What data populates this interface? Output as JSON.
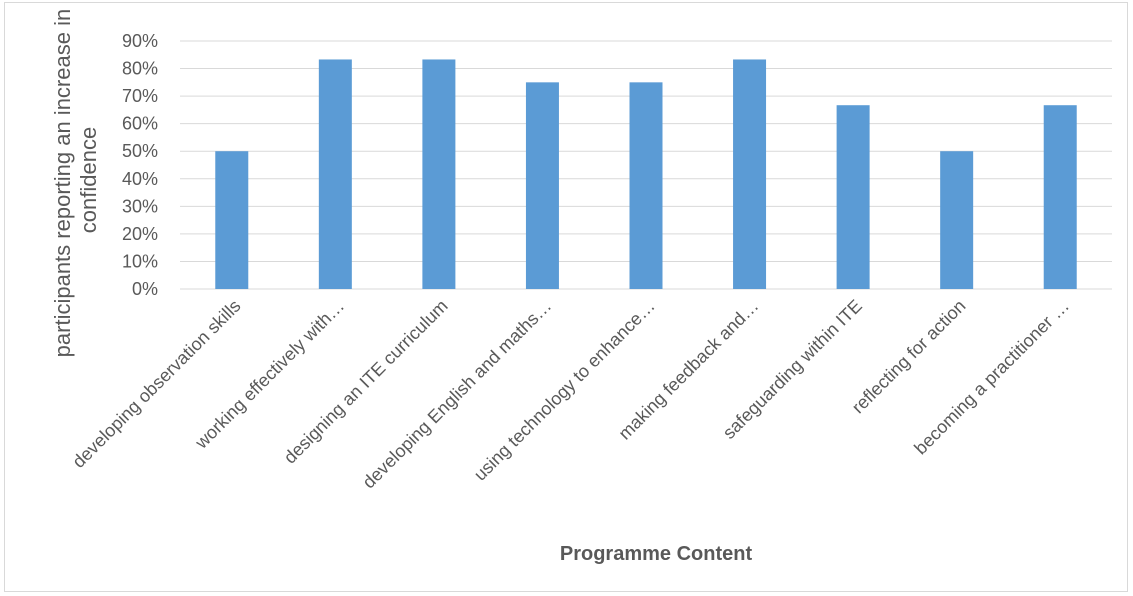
{
  "chart_data": {
    "type": "bar",
    "categories": [
      "developing observation skills",
      "working effectively with…",
      "designing an ITE curriculum",
      "developing English and maths…",
      "using technology to enhance…",
      "making feedback and…",
      "safeguarding within ITE",
      "reflecting for action",
      "becoming a practitioner …"
    ],
    "values": [
      0.5,
      0.833,
      0.833,
      0.75,
      0.75,
      0.833,
      0.667,
      0.5,
      0.667
    ],
    "ylim": [
      0,
      0.9
    ],
    "yticks": [
      "0%",
      "10%",
      "20%",
      "30%",
      "40%",
      "50%",
      "60%",
      "70%",
      "80%",
      "90%"
    ],
    "ylabel_lines": [
      "participants reporting an increase in",
      "confidence"
    ],
    "xlabel": "Programme Content",
    "grid": true,
    "colors": {
      "bar": "#5B9BD5",
      "grid": "#d9d9d9",
      "text": "#595959"
    }
  }
}
